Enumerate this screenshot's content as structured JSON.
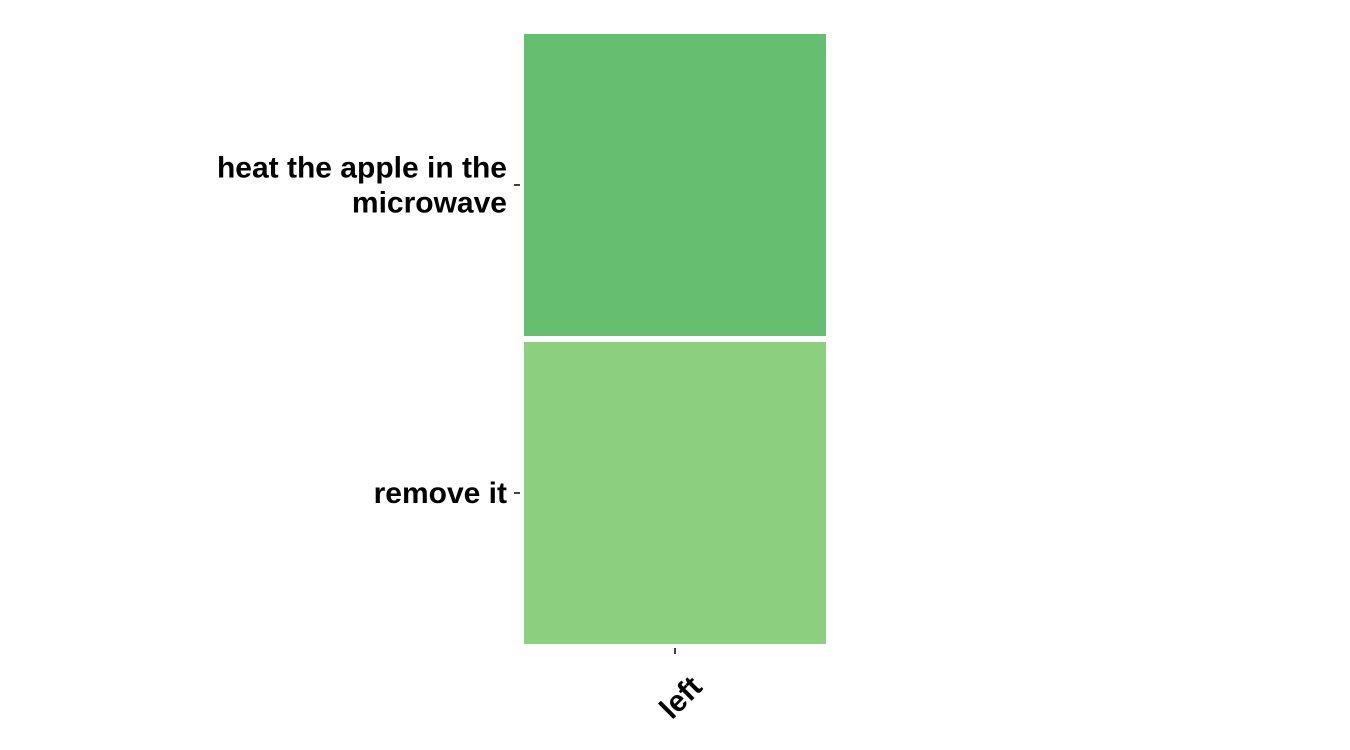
{
  "chart_data": {
    "type": "heatmap",
    "title": "",
    "xlabel": "",
    "ylabel": "",
    "x_categories": [
      "left"
    ],
    "y_categories": [
      "heat the apple in the microwave",
      "remove it"
    ],
    "y_label_lines": [
      [
        "heat the apple in the",
        "microwave"
      ],
      [
        "remove it"
      ]
    ],
    "values": [
      [
        0.75
      ],
      [
        0.55
      ]
    ],
    "value_range": [
      0,
      1
    ],
    "colors": {
      "low": "#c7e9c0",
      "high": "#41ab5d"
    },
    "cell_colors": [
      [
        "#66bf71"
      ],
      [
        "#8ccf7e"
      ]
    ],
    "colorbar": false,
    "grid": false
  }
}
